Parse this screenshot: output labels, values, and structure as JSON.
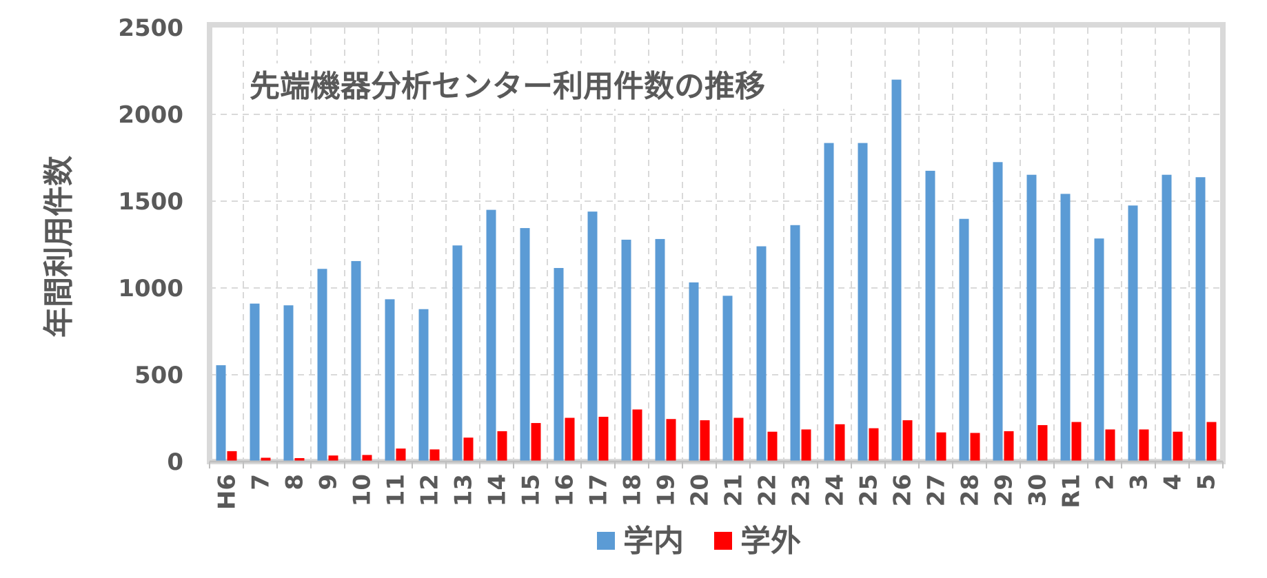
{
  "chart_data": {
    "type": "bar",
    "title": "先端機器分析センター利用件数の推移",
    "ylabel": "年間利用件数",
    "xlabel": "",
    "ylim": [
      0,
      2500
    ],
    "yticks": [
      0,
      500,
      1000,
      1500,
      2000,
      2500
    ],
    "grid": true,
    "legend_position": "bottom",
    "categories": [
      "H6",
      "7",
      "8",
      "9",
      "10",
      "11",
      "12",
      "13",
      "14",
      "15",
      "16",
      "17",
      "18",
      "19",
      "20",
      "21",
      "22",
      "23",
      "24",
      "25",
      "26",
      "27",
      "28",
      "29",
      "30",
      "R1",
      "2",
      "3",
      "4",
      "5"
    ],
    "series": [
      {
        "name": "学内",
        "color": "#5B9BD5",
        "values": [
          555,
          910,
          900,
          1110,
          1155,
          935,
          878,
          1245,
          1450,
          1345,
          1115,
          1440,
          1278,
          1282,
          1032,
          955,
          1240,
          1362,
          1835,
          1835,
          2200,
          1675,
          1398,
          1725,
          1652,
          1542,
          1285,
          1475,
          1652,
          1638
        ]
      },
      {
        "name": "学外",
        "color": "#FF0000",
        "values": [
          60,
          22,
          20,
          35,
          38,
          75,
          70,
          138,
          175,
          222,
          252,
          258,
          300,
          245,
          238,
          252,
          172,
          185,
          215,
          192,
          238,
          168,
          165,
          175,
          210,
          228,
          185,
          185,
          172,
          228
        ]
      }
    ]
  }
}
